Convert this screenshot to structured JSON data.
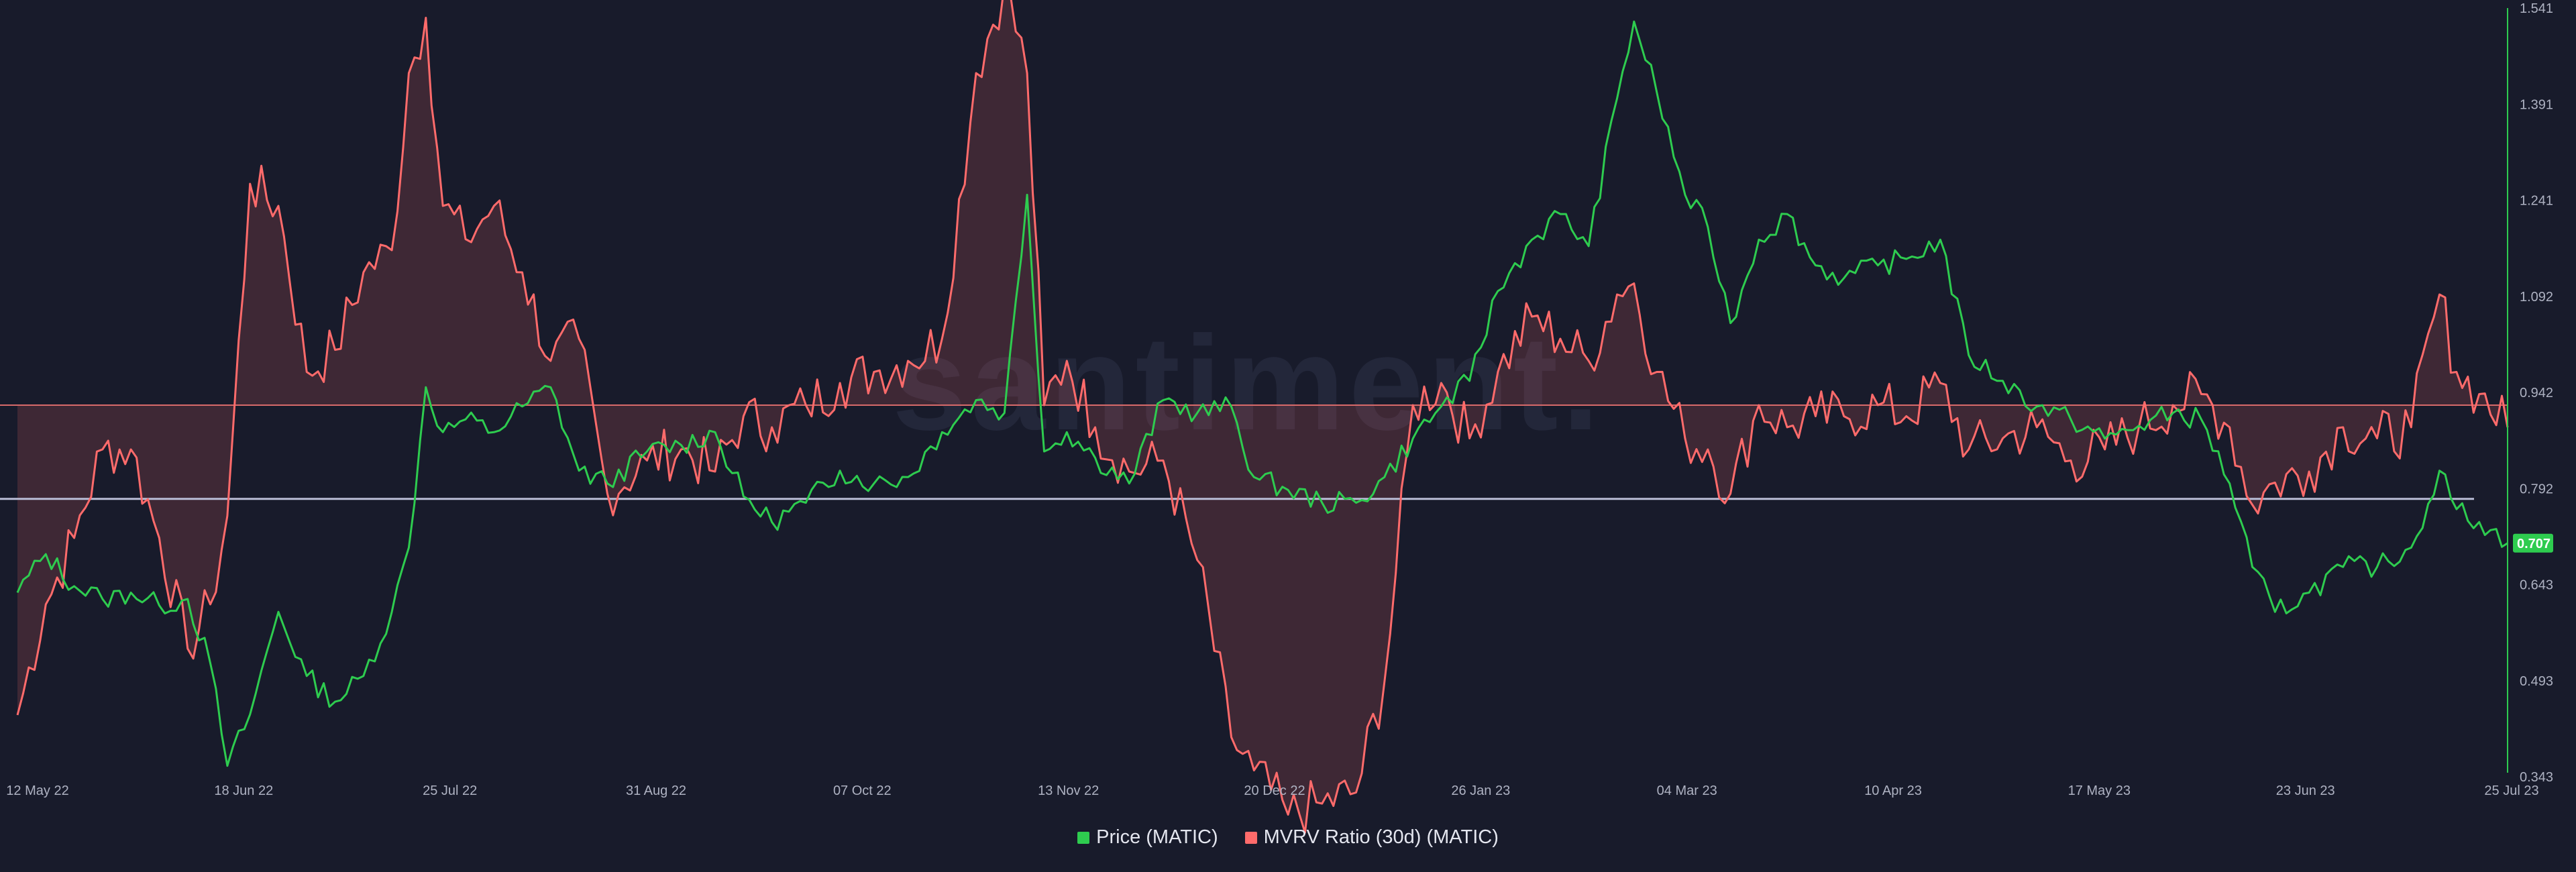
{
  "watermark": "santiment.",
  "legend": [
    {
      "label": "Price (MATIC)",
      "color": "#2ecc4f"
    },
    {
      "label": "MVRV Ratio (30d) (MATIC)",
      "color": "#ff6b6b"
    }
  ],
  "current_price_label": "0.707",
  "chart_data": {
    "type": "line",
    "x_ticks": [
      "12 May 22",
      "18 Jun 22",
      "25 Jul 22",
      "31 Aug 22",
      "07 Oct 22",
      "13 Nov 22",
      "20 Dec 22",
      "26 Jan 23",
      "04 Mar 23",
      "10 Apr 23",
      "17 May 23",
      "23 Jun 23",
      "25 Jul 23"
    ],
    "y_ticks_right": [
      "1.541",
      "1.391",
      "1.241",
      "1.092",
      "0.942",
      "0.792",
      "0.643",
      "0.493",
      "0.343"
    ],
    "y_range_right": [
      0.343,
      1.541
    ],
    "x_range": [
      "2022-05-12",
      "2023-07-25"
    ],
    "reference_lines": {
      "mvrv_baseline": 0.0,
      "price_reference": 0.776
    },
    "series": [
      {
        "name": "Price (MATIC)",
        "color": "#2ecc4f",
        "axis": "right",
        "points": [
          [
            "2022-05-12",
            0.63
          ],
          [
            "2022-05-17",
            0.69
          ],
          [
            "2022-05-22",
            0.64
          ],
          [
            "2022-05-27",
            0.62
          ],
          [
            "2022-06-01",
            0.63
          ],
          [
            "2022-06-06",
            0.61
          ],
          [
            "2022-06-11",
            0.62
          ],
          [
            "2022-06-15",
            0.52
          ],
          [
            "2022-06-18",
            0.36
          ],
          [
            "2022-06-22",
            0.44
          ],
          [
            "2022-06-27",
            0.6
          ],
          [
            "2022-07-02",
            0.5
          ],
          [
            "2022-07-07",
            0.46
          ],
          [
            "2022-07-12",
            0.5
          ],
          [
            "2022-07-17",
            0.6
          ],
          [
            "2022-07-20",
            0.7
          ],
          [
            "2022-07-23",
            0.95
          ],
          [
            "2022-07-26",
            0.88
          ],
          [
            "2022-07-30",
            0.9
          ],
          [
            "2022-08-04",
            0.88
          ],
          [
            "2022-08-09",
            0.92
          ],
          [
            "2022-08-14",
            0.95
          ],
          [
            "2022-08-19",
            0.82
          ],
          [
            "2022-08-24",
            0.8
          ],
          [
            "2022-08-31",
            0.85
          ],
          [
            "2022-09-06",
            0.86
          ],
          [
            "2022-09-12",
            0.88
          ],
          [
            "2022-09-17",
            0.78
          ],
          [
            "2022-09-22",
            0.74
          ],
          [
            "2022-09-28",
            0.77
          ],
          [
            "2022-10-04",
            0.82
          ],
          [
            "2022-10-10",
            0.8
          ],
          [
            "2022-10-16",
            0.81
          ],
          [
            "2022-10-22",
            0.88
          ],
          [
            "2022-10-28",
            0.93
          ],
          [
            "2022-11-02",
            0.91
          ],
          [
            "2022-11-06",
            1.25
          ],
          [
            "2022-11-09",
            0.85
          ],
          [
            "2022-11-13",
            0.88
          ],
          [
            "2022-11-18",
            0.84
          ],
          [
            "2022-11-24",
            0.8
          ],
          [
            "2022-11-30",
            0.93
          ],
          [
            "2022-12-06",
            0.91
          ],
          [
            "2022-12-12",
            0.92
          ],
          [
            "2022-12-16",
            0.81
          ],
          [
            "2022-12-22",
            0.79
          ],
          [
            "2022-12-28",
            0.77
          ],
          [
            "2023-01-03",
            0.77
          ],
          [
            "2023-01-08",
            0.81
          ],
          [
            "2023-01-13",
            0.87
          ],
          [
            "2023-01-18",
            0.92
          ],
          [
            "2023-01-23",
            0.96
          ],
          [
            "2023-01-28",
            1.1
          ],
          [
            "2023-02-03",
            1.18
          ],
          [
            "2023-02-08",
            1.22
          ],
          [
            "2023-02-13",
            1.17
          ],
          [
            "2023-02-18",
            1.4
          ],
          [
            "2023-02-21",
            1.52
          ],
          [
            "2023-02-25",
            1.41
          ],
          [
            "2023-03-02",
            1.25
          ],
          [
            "2023-03-06",
            1.2
          ],
          [
            "2023-03-10",
            1.05
          ],
          [
            "2023-03-15",
            1.18
          ],
          [
            "2023-03-20",
            1.22
          ],
          [
            "2023-03-25",
            1.14
          ],
          [
            "2023-03-30",
            1.12
          ],
          [
            "2023-04-05",
            1.14
          ],
          [
            "2023-04-10",
            1.15
          ],
          [
            "2023-04-16",
            1.18
          ],
          [
            "2023-04-21",
            1.0
          ],
          [
            "2023-04-27",
            0.96
          ],
          [
            "2023-05-03",
            0.92
          ],
          [
            "2023-05-09",
            0.9
          ],
          [
            "2023-05-15",
            0.87
          ],
          [
            "2023-05-21",
            0.89
          ],
          [
            "2023-05-27",
            0.91
          ],
          [
            "2023-06-01",
            0.9
          ],
          [
            "2023-06-06",
            0.8
          ],
          [
            "2023-06-10",
            0.67
          ],
          [
            "2023-06-14",
            0.6
          ],
          [
            "2023-06-20",
            0.63
          ],
          [
            "2023-06-26",
            0.67
          ],
          [
            "2023-07-02",
            0.67
          ],
          [
            "2023-07-08",
            0.7
          ],
          [
            "2023-07-13",
            0.82
          ],
          [
            "2023-07-16",
            0.76
          ],
          [
            "2023-07-20",
            0.74
          ],
          [
            "2023-07-25",
            0.707
          ]
        ]
      },
      {
        "name": "MVRV Ratio (30d) (MATIC)",
        "color": "#ff6b6b",
        "axis": "hidden",
        "baseline": 0.0,
        "points": [
          [
            "2022-05-12",
            -28
          ],
          [
            "2022-05-17",
            -18
          ],
          [
            "2022-05-22",
            -12
          ],
          [
            "2022-05-27",
            -4
          ],
          [
            "2022-06-01",
            -4
          ],
          [
            "2022-06-06",
            -12
          ],
          [
            "2022-06-11",
            -22
          ],
          [
            "2022-06-15",
            -18
          ],
          [
            "2022-06-18",
            -10
          ],
          [
            "2022-06-22",
            20
          ],
          [
            "2022-06-27",
            18
          ],
          [
            "2022-07-02",
            3
          ],
          [
            "2022-07-07",
            5
          ],
          [
            "2022-07-12",
            12
          ],
          [
            "2022-07-17",
            14
          ],
          [
            "2022-07-20",
            30
          ],
          [
            "2022-07-23",
            35
          ],
          [
            "2022-07-26",
            18
          ],
          [
            "2022-07-30",
            15
          ],
          [
            "2022-08-04",
            18
          ],
          [
            "2022-08-09",
            12
          ],
          [
            "2022-08-14",
            4
          ],
          [
            "2022-08-19",
            6
          ],
          [
            "2022-08-24",
            -8
          ],
          [
            "2022-08-31",
            -5
          ],
          [
            "2022-09-06",
            -4
          ],
          [
            "2022-09-12",
            -6
          ],
          [
            "2022-09-17",
            -1
          ],
          [
            "2022-09-22",
            -2
          ],
          [
            "2022-09-28",
            0
          ],
          [
            "2022-10-04",
            2
          ],
          [
            "2022-10-10",
            3
          ],
          [
            "2022-10-16",
            4
          ],
          [
            "2022-10-22",
            6
          ],
          [
            "2022-10-28",
            30
          ],
          [
            "2022-11-02",
            38
          ],
          [
            "2022-11-06",
            30
          ],
          [
            "2022-11-09",
            0
          ],
          [
            "2022-11-13",
            4
          ],
          [
            "2022-11-18",
            -2
          ],
          [
            "2022-11-24",
            -6
          ],
          [
            "2022-11-30",
            -5
          ],
          [
            "2022-12-06",
            -14
          ],
          [
            "2022-12-12",
            -30
          ],
          [
            "2022-12-16",
            -33
          ],
          [
            "2022-12-22",
            -37
          ],
          [
            "2022-12-28",
            -36
          ],
          [
            "2023-01-03",
            -35
          ],
          [
            "2023-01-08",
            -25
          ],
          [
            "2023-01-13",
            0
          ],
          [
            "2023-01-18",
            2
          ],
          [
            "2023-01-23",
            -3
          ],
          [
            "2023-01-28",
            3
          ],
          [
            "2023-02-03",
            8
          ],
          [
            "2023-02-08",
            6
          ],
          [
            "2023-02-13",
            4
          ],
          [
            "2023-02-18",
            10
          ],
          [
            "2023-02-21",
            11
          ],
          [
            "2023-02-25",
            3
          ],
          [
            "2023-03-02",
            -3
          ],
          [
            "2023-03-06",
            -4
          ],
          [
            "2023-03-10",
            -8
          ],
          [
            "2023-03-15",
            0
          ],
          [
            "2023-03-20",
            -2
          ],
          [
            "2023-03-25",
            -1
          ],
          [
            "2023-03-30",
            -1
          ],
          [
            "2023-04-05",
            0
          ],
          [
            "2023-04-10",
            -1
          ],
          [
            "2023-04-16",
            2
          ],
          [
            "2023-04-21",
            -4
          ],
          [
            "2023-04-27",
            -3
          ],
          [
            "2023-05-03",
            -2
          ],
          [
            "2023-05-09",
            -5
          ],
          [
            "2023-05-15",
            -4
          ],
          [
            "2023-05-21",
            -2
          ],
          [
            "2023-05-27",
            0
          ],
          [
            "2023-06-01",
            1
          ],
          [
            "2023-06-06",
            -2
          ],
          [
            "2023-06-10",
            -9
          ],
          [
            "2023-06-14",
            -7
          ],
          [
            "2023-06-20",
            -6
          ],
          [
            "2023-06-26",
            -2
          ],
          [
            "2023-07-02",
            -3
          ],
          [
            "2023-07-08",
            -2
          ],
          [
            "2023-07-13",
            10
          ],
          [
            "2023-07-16",
            3
          ],
          [
            "2023-07-20",
            1
          ],
          [
            "2023-07-25",
            -2
          ]
        ]
      }
    ]
  }
}
